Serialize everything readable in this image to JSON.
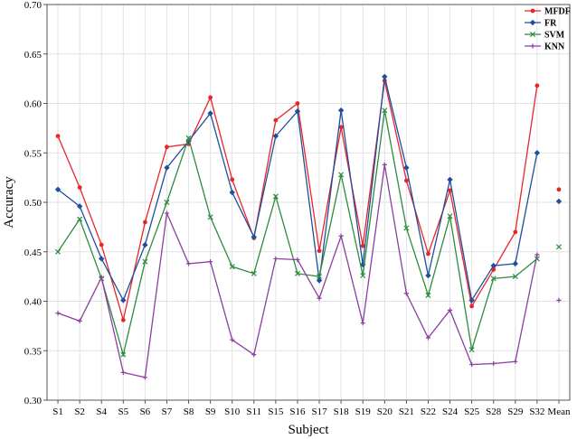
{
  "chart_data": {
    "type": "line",
    "xlabel": "Subject",
    "ylabel": "Accuracy",
    "ylim": [
      0.3,
      0.7
    ],
    "yticks": [
      "0.30",
      "0.35",
      "0.40",
      "0.45",
      "0.50",
      "0.55",
      "0.60",
      "0.65",
      "0.70"
    ],
    "categories": [
      "S1",
      "S2",
      "S4",
      "S5",
      "S6",
      "S7",
      "S8",
      "S9",
      "S10",
      "S11",
      "S15",
      "S16",
      "S17",
      "S18",
      "S19",
      "S20",
      "S21",
      "S22",
      "S24",
      "S25",
      "S28",
      "S29",
      "S32"
    ],
    "mean_label": "Mean",
    "grid": true,
    "legend_position": "top-right",
    "series": [
      {
        "name": "MFDF",
        "color": "#e8262a",
        "marker": "dot",
        "values": [
          0.567,
          0.515,
          0.457,
          0.381,
          0.48,
          0.556,
          0.559,
          0.606,
          0.523,
          0.464,
          0.583,
          0.6,
          0.451,
          0.576,
          0.456,
          0.623,
          0.522,
          0.448,
          0.512,
          0.395,
          0.432,
          0.47,
          0.618
        ],
        "mean": 0.513
      },
      {
        "name": "FR",
        "color": "#1f4e9c",
        "marker": "diamond",
        "values": [
          0.513,
          0.496,
          0.443,
          0.401,
          0.457,
          0.535,
          0.562,
          0.59,
          0.51,
          0.465,
          0.567,
          0.592,
          0.421,
          0.593,
          0.437,
          0.627,
          0.535,
          0.426,
          0.523,
          0.401,
          0.436,
          0.438,
          0.55
        ],
        "mean": 0.501
      },
      {
        "name": "SVM",
        "color": "#2e8b3e",
        "marker": "x",
        "values": [
          0.45,
          0.483,
          0.423,
          0.346,
          0.44,
          0.5,
          0.565,
          0.485,
          0.435,
          0.428,
          0.506,
          0.428,
          0.425,
          0.528,
          0.426,
          0.593,
          0.474,
          0.406,
          0.486,
          0.351,
          0.423,
          0.425,
          0.443
        ],
        "mean": 0.455
      },
      {
        "name": "KNN",
        "color": "#8b3f9e",
        "marker": "plus",
        "values": [
          0.388,
          0.38,
          0.424,
          0.328,
          0.323,
          0.489,
          0.438,
          0.44,
          0.361,
          0.346,
          0.443,
          0.442,
          0.403,
          0.466,
          0.378,
          0.538,
          0.408,
          0.363,
          0.391,
          0.336,
          0.337,
          0.339,
          0.447
        ],
        "mean": 0.401
      }
    ]
  }
}
